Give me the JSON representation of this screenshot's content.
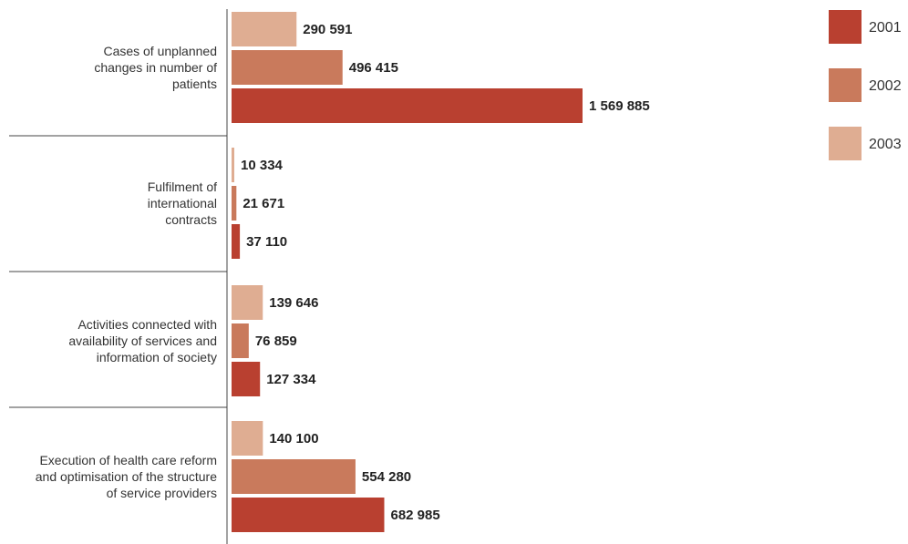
{
  "colors": {
    "y2001": "#B94030",
    "y2002": "#C97A5C",
    "y2003": "#DFAD92",
    "axis": "#444444",
    "text": "#333333"
  },
  "chart_data": {
    "type": "bar",
    "orientation": "horizontal",
    "title": "",
    "xlabel": "",
    "ylabel": "",
    "categories": [
      {
        "lines": [
          "Cases of unplanned",
          "changes in number of",
          "patients"
        ]
      },
      {
        "lines": [
          "Fulfilment of",
          "international",
          "contracts"
        ]
      },
      {
        "lines": [
          "Activities connected with",
          "availability of services and",
          "information of society"
        ]
      },
      {
        "lines": [
          "Execution of health care reform",
          "and optimisation of the structure",
          "of service providers"
        ]
      }
    ],
    "series": [
      {
        "name": "2003",
        "color_key": "y2003",
        "values": [
          290591,
          10334,
          139646,
          140100
        ],
        "labels": [
          "290 591",
          "10 334",
          "139 646",
          "140 100"
        ]
      },
      {
        "name": "2002",
        "color_key": "y2002",
        "values": [
          496415,
          21671,
          76859,
          554280
        ],
        "labels": [
          "496 415",
          "21 671",
          "76 859",
          "554 280"
        ]
      },
      {
        "name": "2001",
        "color_key": "y2001",
        "values": [
          1569885,
          37110,
          127334,
          682985
        ],
        "labels": [
          "1 569 885",
          "37 110",
          "127 334",
          "682 985"
        ]
      }
    ],
    "legend": {
      "placement": "top-right",
      "items": [
        {
          "label": "2001",
          "color_key": "y2001"
        },
        {
          "label": "2002",
          "color_key": "y2002"
        },
        {
          "label": "2003",
          "color_key": "y2003"
        }
      ]
    },
    "grid": false,
    "xlim": [
      0,
      1800000
    ]
  }
}
